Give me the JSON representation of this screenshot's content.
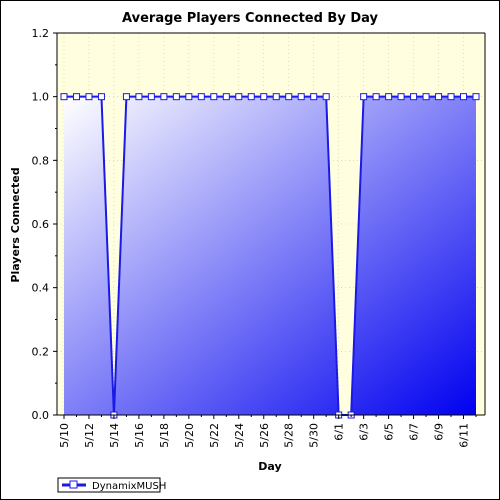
{
  "chart_data": {
    "type": "area",
    "title": "Average Players Connected By Day",
    "xlabel": "Day",
    "ylabel": "Players Connected",
    "ylim": [
      0,
      1.2
    ],
    "yticks": [
      "0.0",
      "0.2",
      "0.4",
      "0.6",
      "0.8",
      "1.0",
      "1.2"
    ],
    "grid": true,
    "legend_position": "bottom-left",
    "x": [
      "5/10",
      "5/11",
      "5/12",
      "5/13",
      "5/14",
      "5/15",
      "5/16",
      "5/17",
      "5/18",
      "5/19",
      "5/20",
      "5/21",
      "5/22",
      "5/23",
      "5/24",
      "5/25",
      "5/26",
      "5/27",
      "5/28",
      "5/29",
      "5/30",
      "5/31",
      "6/1",
      "6/2",
      "6/3",
      "6/4",
      "6/5",
      "6/6",
      "6/7",
      "6/8",
      "6/9",
      "6/10",
      "6/11",
      "6/12"
    ],
    "xtick_labels": [
      "5/10",
      "5/12",
      "5/14",
      "5/16",
      "5/18",
      "5/20",
      "5/22",
      "5/24",
      "5/26",
      "5/28",
      "5/30",
      "6/1",
      "6/3",
      "6/5",
      "6/7",
      "6/9",
      "6/11"
    ],
    "series": [
      {
        "name": "DynamixMUSH",
        "values": [
          1,
          1,
          1,
          1,
          0,
          1,
          1,
          1,
          1,
          1,
          1,
          1,
          1,
          1,
          1,
          1,
          1,
          1,
          1,
          1,
          1,
          1,
          0,
          0,
          1,
          1,
          1,
          1,
          1,
          1,
          1,
          1,
          1,
          1
        ]
      }
    ],
    "colors": {
      "plot_background": "#ffffe0",
      "line": "#1a1ae6",
      "fill_light": "#ffffff",
      "fill_dark": "#0000f0",
      "grid": "#c8c8a0"
    }
  }
}
